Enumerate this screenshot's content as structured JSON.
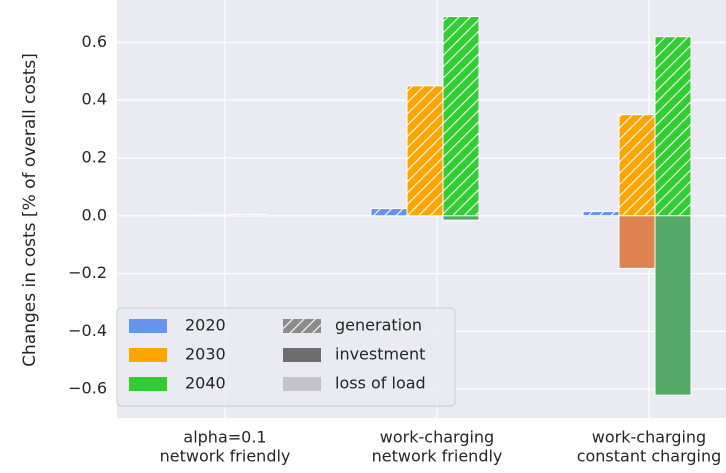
{
  "chart_data": {
    "type": "grouped-stacked-bar",
    "y_label": "Changes in costs [% of overall costs]",
    "categories": [
      [
        "alpha=0.1",
        "network friendly"
      ],
      [
        "work-charging",
        "network friendly"
      ],
      [
        "work-charging",
        "constant charging"
      ]
    ],
    "components": [
      {
        "name": "generation",
        "color": "#8c8c8c",
        "hatch": true
      },
      {
        "name": "investment",
        "color": "#6e6e6e",
        "hatch": false
      },
      {
        "name": "loss of load",
        "color": "#c4c4c8",
        "hatch": false
      }
    ],
    "series": [
      {
        "name": "2020",
        "color": "#6495ed",
        "stacks": [
          {
            "color": "#6495ed",
            "hatch": true,
            "values": [
              0.002,
              0.025,
              0.015
            ]
          },
          {
            "color": "#4c72b0",
            "hatch": false,
            "values": [
              0,
              0,
              -0.004
            ]
          },
          {
            "color": "#a1c9f4",
            "hatch": false,
            "values": [
              0,
              0,
              0
            ]
          }
        ]
      },
      {
        "name": "2030",
        "color": "#ffa500",
        "stacks": [
          {
            "color": "#ffa500",
            "hatch": true,
            "values": [
              0.003,
              0.45,
              0.35
            ]
          },
          {
            "color": "#dd8452",
            "hatch": false,
            "values": [
              0,
              0,
              -0.182
            ]
          },
          {
            "color": "#ffb482",
            "hatch": false,
            "values": [
              0,
              0,
              0
            ]
          }
        ]
      },
      {
        "name": "2040",
        "color": "#32cd32",
        "stacks": [
          {
            "color": "#32cd32",
            "hatch": true,
            "values": [
              0.004,
              0.69,
              0.62
            ]
          },
          {
            "color": "#55a868",
            "hatch": false,
            "values": [
              0,
              -0.015,
              -0.621
            ]
          },
          {
            "color": "#8de5a1",
            "hatch": false,
            "values": [
              0,
              0,
              0
            ]
          }
        ]
      }
    ],
    "ylim": [
      -0.7,
      0.747
    ],
    "yticks": [
      {
        "value": -0.6,
        "label": "−0.6"
      },
      {
        "value": -0.4,
        "label": "−0.4"
      },
      {
        "value": -0.2,
        "label": "−0.2"
      },
      {
        "value": 0,
        "label": "0.0"
      },
      0.2,
      0.4,
      0.6
    ],
    "grid": true,
    "legend": "lower left"
  }
}
